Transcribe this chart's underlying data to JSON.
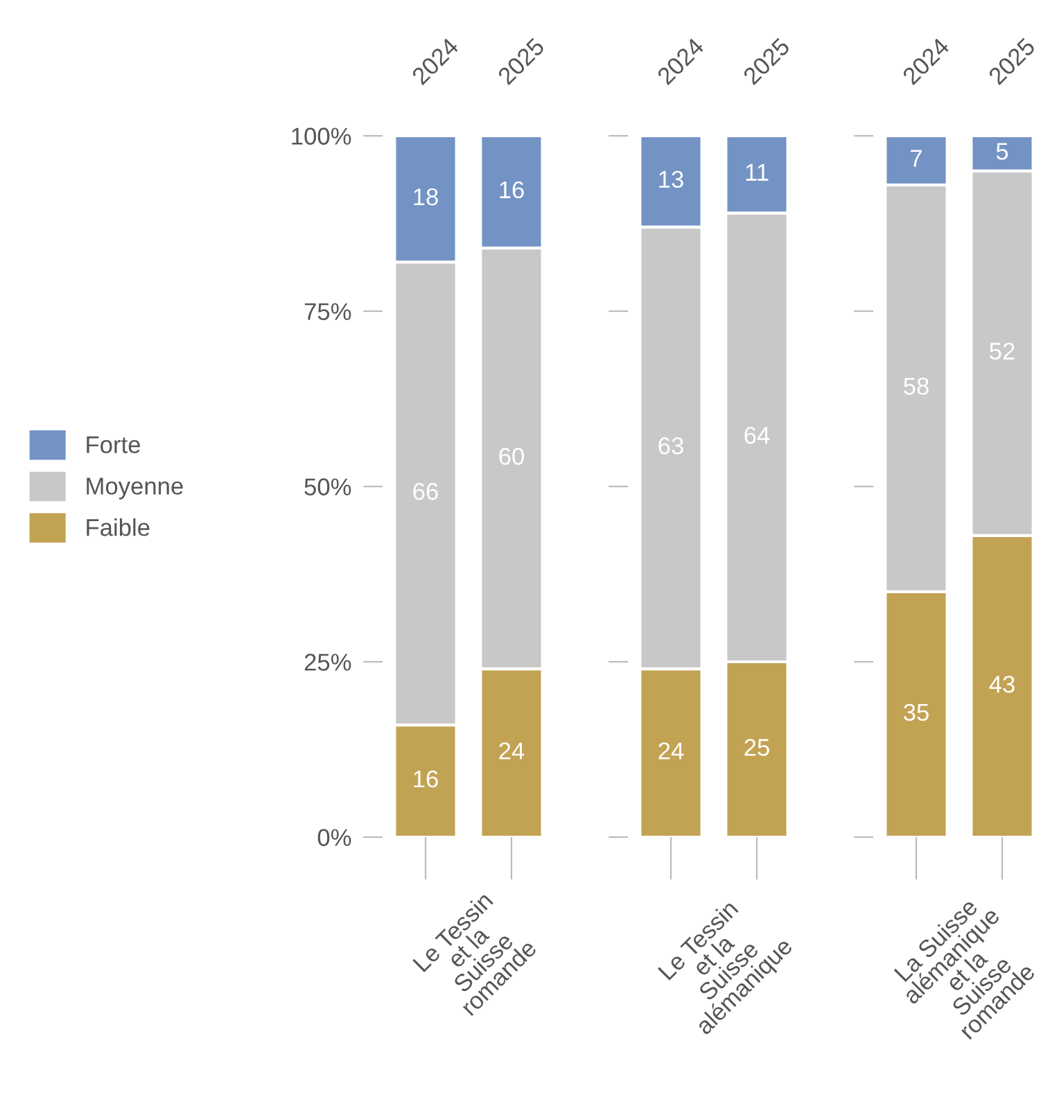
{
  "chart_data": [
    {
      "type": "bar",
      "stacked": true,
      "categories": [
        "2024",
        "2025"
      ],
      "xlabel": "Le Tessin\net la\nSuisse\nromande",
      "ylim": [
        0,
        100
      ],
      "yticks": [
        {
          "value": 0,
          "label": "0%"
        },
        {
          "value": 25,
          "label": "25%"
        },
        {
          "value": 50,
          "label": "50%"
        },
        {
          "value": 75,
          "label": "75%"
        },
        {
          "value": 100,
          "label": "100%"
        }
      ],
      "data_labels": true,
      "legend": "left",
      "series": [
        {
          "name": "Faible",
          "color": "#c2a353",
          "values": [
            16,
            24
          ]
        },
        {
          "name": "Moyenne",
          "color": "#c8c8c8",
          "values": [
            66,
            60
          ]
        },
        {
          "name": "Forte",
          "color": "#7393c4",
          "values": [
            18,
            16
          ]
        }
      ]
    },
    {
      "type": "bar",
      "stacked": true,
      "categories": [
        "2024",
        "2025"
      ],
      "xlabel": "Le Tessin\net la\nSuisse\nalémanique",
      "ylim": [
        0,
        100
      ],
      "yticks": [
        {
          "value": 0,
          "label": null
        },
        {
          "value": 25,
          "label": null
        },
        {
          "value": 50,
          "label": null
        },
        {
          "value": 75,
          "label": null
        },
        {
          "value": 100,
          "label": null
        }
      ],
      "data_labels": true,
      "tick_labels": "x",
      "series": [
        {
          "color": "#c2a353",
          "values": [
            24,
            25
          ]
        },
        {
          "color": "#c8c8c8",
          "values": [
            63,
            64
          ]
        },
        {
          "color": "#7393c4",
          "values": [
            13,
            11
          ]
        }
      ]
    },
    {
      "type": "bar",
      "stacked": true,
      "categories": [
        "2024",
        "2025"
      ],
      "xlabel": "La Suisse\nalémanique\net la\nSuisse\nromande",
      "ylim": [
        0,
        100
      ],
      "yticks": [
        {
          "value": 0,
          "label": null
        },
        {
          "value": 25,
          "label": null
        },
        {
          "value": 50,
          "label": null
        },
        {
          "value": 75,
          "label": null
        },
        {
          "value": 100,
          "label": null
        }
      ],
      "data_labels": true,
      "tick_labels": "x",
      "series": [
        {
          "color": "#c2a353",
          "values": [
            35,
            43
          ]
        },
        {
          "color": "#c8c8c8",
          "values": [
            58,
            52
          ]
        },
        {
          "color": "#7393c4",
          "values": [
            7,
            5
          ]
        }
      ]
    }
  ]
}
